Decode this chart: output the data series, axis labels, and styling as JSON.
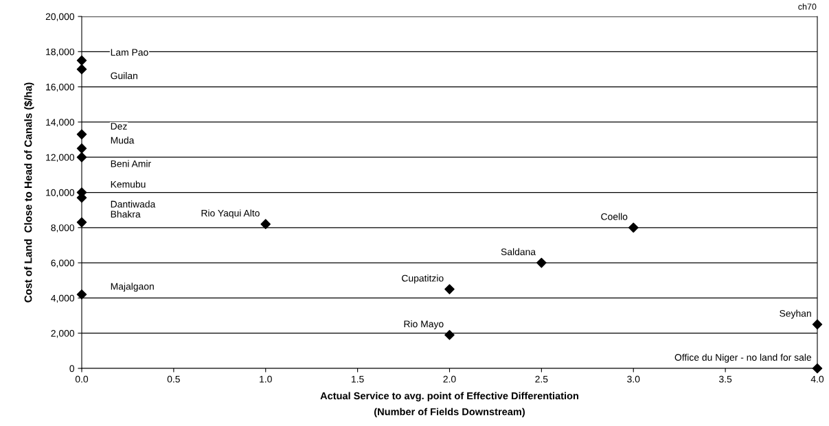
{
  "chart_data": {
    "type": "scatter",
    "xlabel": "Actual Service to avg. point of Effective Differentiation\n(Number of Fields Downstream)",
    "ylabel": "Cost of Land  Close to Head of Canals ($/ha)",
    "x": [
      0,
      0,
      0,
      0,
      0,
      0,
      0,
      0,
      0,
      1,
      3,
      2.5,
      2,
      2,
      4,
      4
    ],
    "series": [
      {
        "color": "#000000",
        "values": [
          17500,
          17000,
          13300,
          12500,
          12000,
          10000,
          9700,
          8300,
          4200,
          8200,
          8000,
          6000,
          4500,
          1900,
          2500,
          0
        ]
      }
    ],
    "marker": "diamond",
    "grid": "y",
    "xlim": [
      0,
      4
    ],
    "ylim": [
      0,
      20000
    ],
    "xticks": [
      {
        "value": 0,
        "label": "0.0"
      },
      {
        "value": 0.5,
        "label": "0.5"
      },
      {
        "value": 1,
        "label": "1.0"
      },
      {
        "value": 1.5,
        "label": "1.5"
      },
      {
        "value": 2,
        "label": "2.0"
      },
      {
        "value": 2.5,
        "label": "2.5"
      },
      {
        "value": 3,
        "label": "3.0"
      },
      {
        "value": 3.5,
        "label": "3.5"
      },
      {
        "value": 4,
        "label": "4.0"
      }
    ],
    "yticks": [
      0,
      {
        "value": 2000,
        "label": "2,000"
      },
      {
        "value": 4000,
        "label": "4,000"
      },
      {
        "value": 6000,
        "label": "6,000"
      },
      {
        "value": 8000,
        "label": "8,000"
      },
      {
        "value": 10000,
        "label": "10,000"
      },
      {
        "value": 12000,
        "label": "12,000"
      },
      {
        "value": 14000,
        "label": "14,000"
      },
      {
        "value": 16000,
        "label": "16,000"
      },
      {
        "value": 18000,
        "label": "18,000"
      },
      {
        "value": 20000,
        "label": "20,000"
      }
    ],
    "annotations": [
      "Lam Pao",
      "Guilan",
      "Dez",
      "Muda",
      "Beni Amir",
      "Kemubu",
      "Dantiwada",
      "Bhakra",
      "Majalgaon",
      "Rio Yaqui Alto",
      "Coello",
      "Saldana",
      "Cupatitzio",
      "Rio Mayo",
      "Seyhan",
      "Office du Niger - no land for sale",
      "ch70"
    ]
  }
}
